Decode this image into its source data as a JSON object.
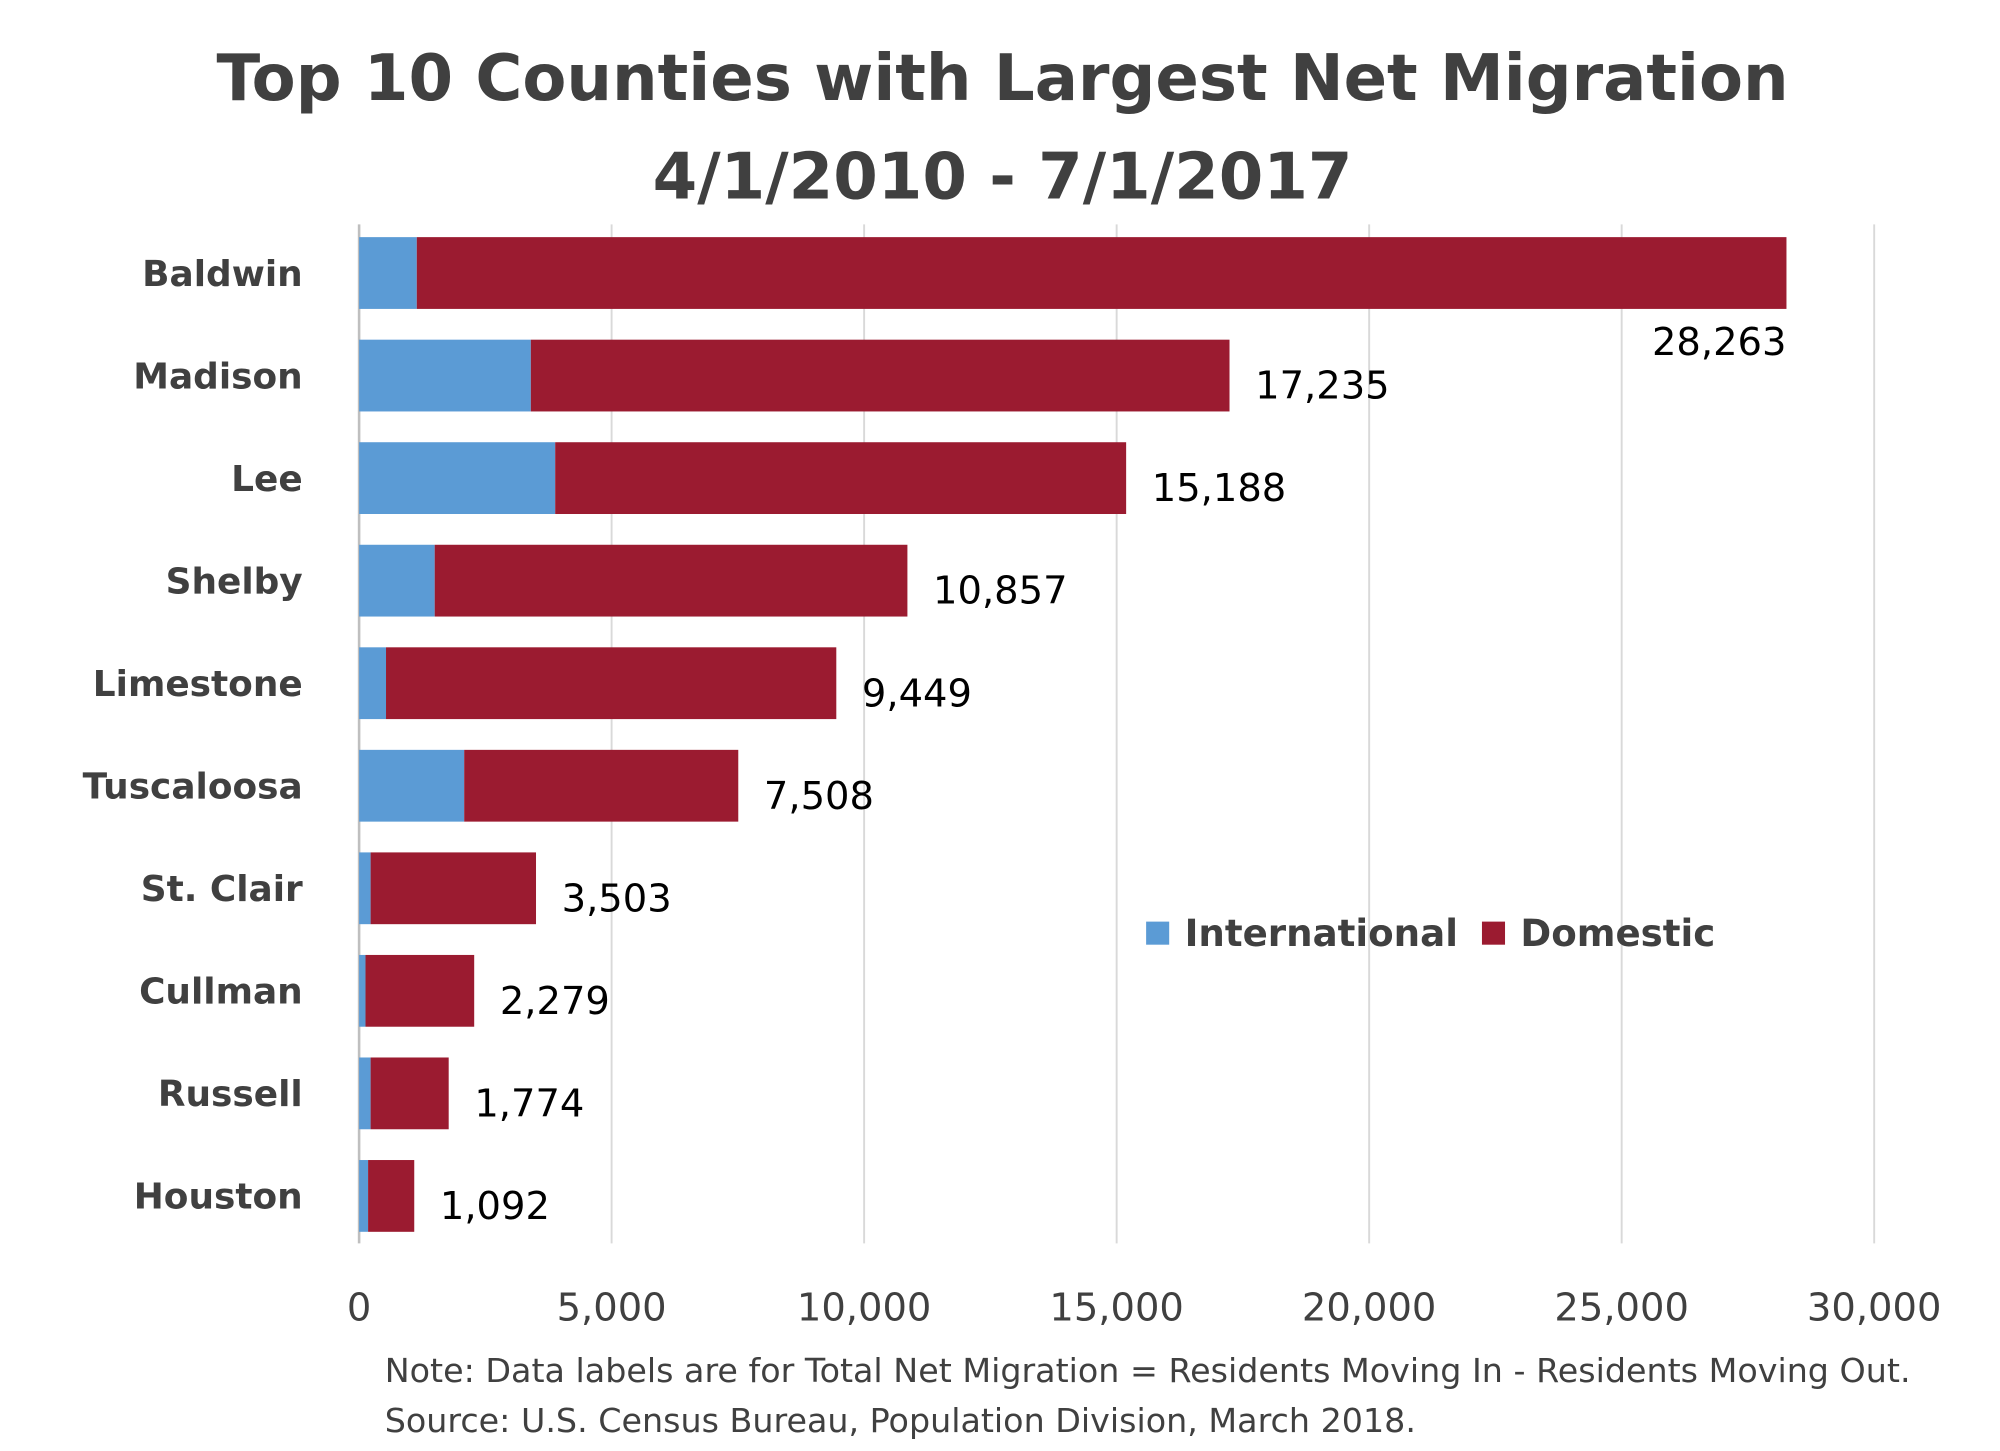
{
  "chart_data": {
    "type": "bar",
    "orientation": "horizontal",
    "stacked": true,
    "title": [
      "Top 10 Counties with Largest Net Migration",
      "4/1/2010 - 7/1/2017"
    ],
    "categories": [
      "Baldwin",
      "Madison",
      "Lee",
      "Shelby",
      "Limestone",
      "Tuscaloosa",
      "St. Clair",
      "Cullman",
      "Russell",
      "Houston"
    ],
    "series": [
      {
        "name": "International",
        "color": "#5B9BD5",
        "values": [
          1142,
          3400,
          3883,
          1497,
          533,
          2081,
          228,
          127,
          228,
          178
        ]
      },
      {
        "name": "Domestic",
        "color": "#9B1B30",
        "values": [
          27121,
          13835,
          11305,
          9360,
          8916,
          5427,
          3275,
          2152,
          1546,
          914
        ]
      }
    ],
    "data_labels": [
      "28,263",
      "17,235",
      "15,188",
      "10,857",
      "9,449",
      "7,508",
      "3,503",
      "2,279",
      "1,774",
      "1,092"
    ],
    "xlim": [
      0,
      30000
    ],
    "xticks": [
      "0",
      "5,000",
      "10,000",
      "15,000",
      "20,000",
      "25,000",
      "30,000"
    ],
    "grid": "vertical",
    "legend_position": "lower-right inside plot",
    "notes": [
      "Note: Data labels are for Total Net Migration = Residents Moving In - Residents Moving Out.",
      "Source: U.S. Census Bureau, Population Division, March 2018."
    ]
  }
}
